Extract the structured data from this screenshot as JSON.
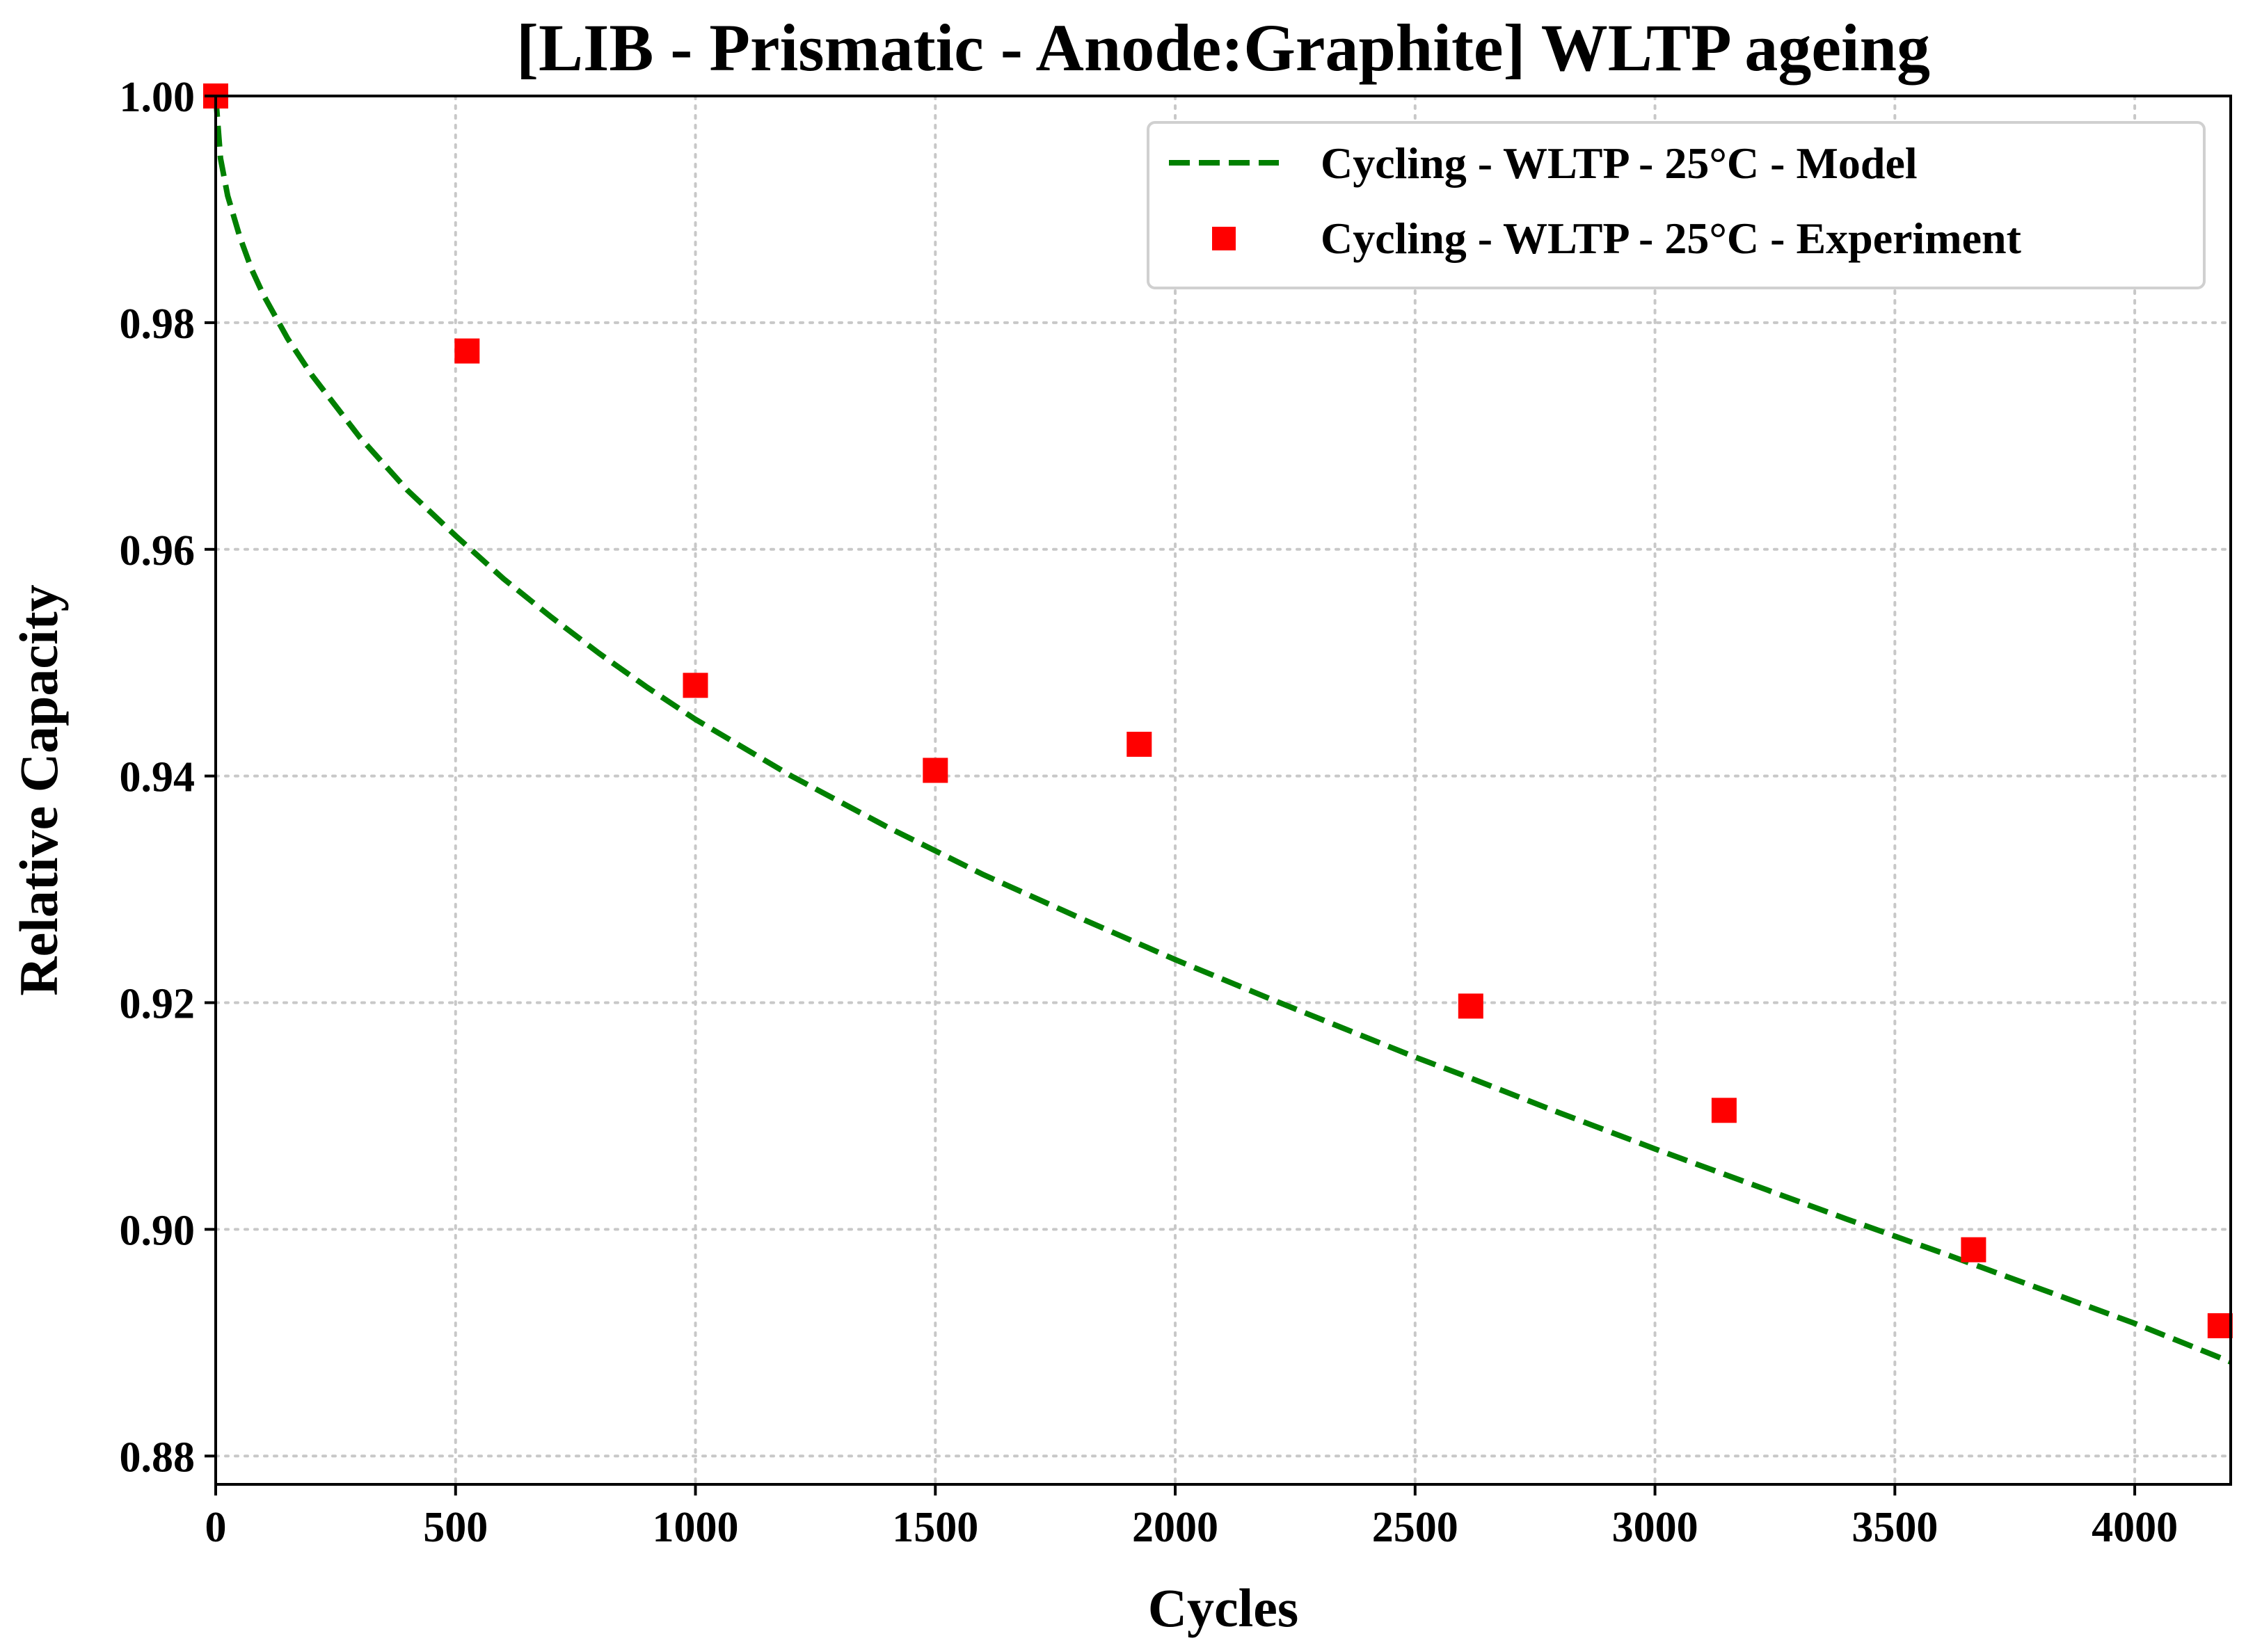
{
  "chart_data": {
    "type": "line",
    "title": "[LIB - Prismatic - Anode:Graphite] WLTP ageing",
    "xlabel": "Cycles",
    "ylabel": "Relative Capacity",
    "xlim": [
      0,
      4200
    ],
    "ylim": [
      0.8775,
      1.0
    ],
    "xticks": [
      0,
      500,
      1000,
      1500,
      2000,
      2500,
      3000,
      3500,
      4000
    ],
    "xtick_labels": [
      "0",
      "500",
      "1000",
      "1500",
      "2000",
      "2500",
      "3000",
      "3500",
      "4000"
    ],
    "yticks": [
      0.88,
      0.9,
      0.92,
      0.94,
      0.96,
      0.98,
      1.0
    ],
    "ytick_labels": [
      "0.88",
      "0.90",
      "0.92",
      "0.94",
      "0.96",
      "0.98",
      "1.00"
    ],
    "grid": true,
    "legend_position": "top-right",
    "series": [
      {
        "name": "Cycling - WLTP - 25°C - Model",
        "style": "dashed-line",
        "color": "#008000",
        "x": [
          0,
          10,
          25,
          50,
          75,
          100,
          150,
          200,
          300,
          400,
          500,
          600,
          700,
          800,
          900,
          1000,
          1200,
          1400,
          1500,
          1600,
          1800,
          2000,
          2200,
          2400,
          2500,
          2600,
          2800,
          3000,
          3200,
          3400,
          3500,
          3600,
          3800,
          4000,
          4200
        ],
        "y": [
          1.0,
          0.9945,
          0.9912,
          0.9876,
          0.9847,
          0.9824,
          0.9786,
          0.9754,
          0.9699,
          0.9652,
          0.9612,
          0.9574,
          0.954,
          0.9508,
          0.9478,
          0.945,
          0.94,
          0.9355,
          0.9334,
          0.9313,
          0.9275,
          0.9238,
          0.9203,
          0.9169,
          0.9152,
          0.9136,
          0.9103,
          0.9071,
          0.904,
          0.9009,
          0.8994,
          0.8979,
          0.8948,
          0.8917,
          0.8883
        ]
      },
      {
        "name": "Cycling - WLTP - 25°C - Experiment",
        "style": "square-markers",
        "color": "#ff0000",
        "x": [
          0,
          524,
          1000,
          1500,
          1925,
          2616,
          3144,
          3664,
          4178
        ],
        "y": [
          1.0,
          0.9775,
          0.948,
          0.9405,
          0.9428,
          0.9197,
          0.9105,
          0.8982,
          0.8915
        ]
      }
    ]
  }
}
